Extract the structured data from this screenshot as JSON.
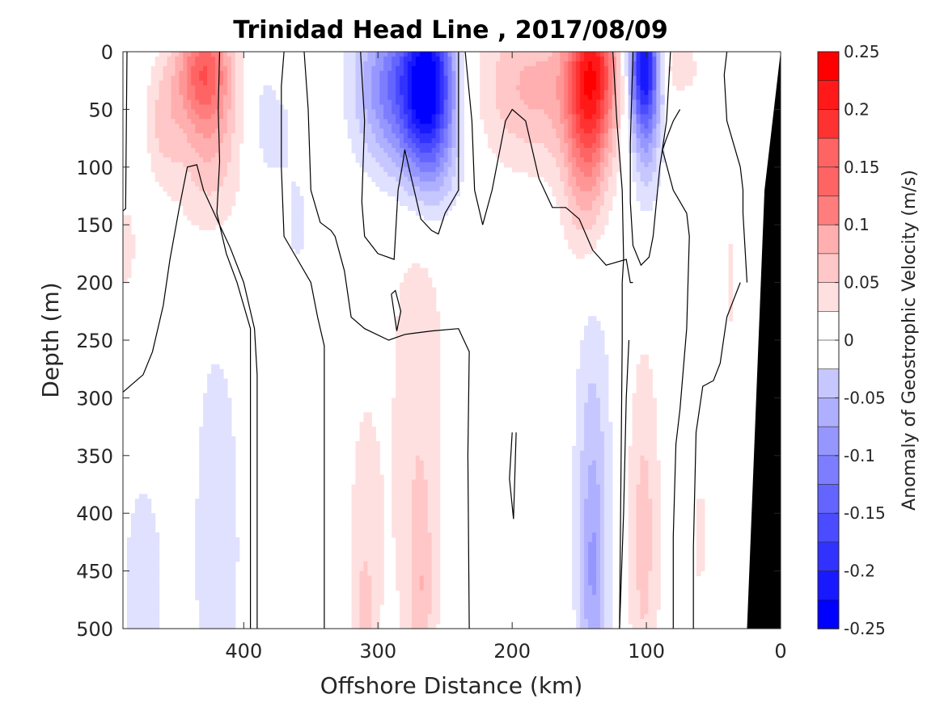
{
  "chart_data": {
    "type": "heatmap",
    "title": "Trinidad Head Line , 2017/08/09",
    "xlabel": "Offshore Distance (km)",
    "ylabel": "Depth (m)",
    "colorbar_label": "Anomaly of Geostrophic Velocity (m/s)",
    "xlim": [
      490,
      0
    ],
    "ylim": [
      0,
      500
    ],
    "x_reversed": true,
    "y_reversed": true,
    "x_ticks": [
      "400",
      "300",
      "200",
      "100",
      "0"
    ],
    "x_tick_values": [
      400,
      300,
      200,
      100,
      0
    ],
    "y_ticks": [
      "0",
      "50",
      "100",
      "150",
      "200",
      "250",
      "300",
      "350",
      "400",
      "450",
      "500"
    ],
    "y_tick_values": [
      0,
      50,
      100,
      150,
      200,
      250,
      300,
      350,
      400,
      450,
      500
    ],
    "colorbar": {
      "clim": [
        -0.25,
        0.25
      ],
      "step": 0.025,
      "tick_labels": [
        "0.25",
        "0.2",
        "0.15",
        "0.1",
        "0.05",
        "0",
        "-0.05",
        "-0.1",
        "-0.15",
        "-0.2",
        "-0.25"
      ],
      "tick_values": [
        0.25,
        0.2,
        0.15,
        0.1,
        0.05,
        0,
        -0.05,
        -0.1,
        -0.15,
        -0.2,
        -0.25
      ]
    },
    "positive_color": "#ff0000",
    "negative_color": "#0000ff",
    "zero_color": "#ffffff",
    "bathymetry_color": "#000000",
    "bathymetry": [
      [
        25,
        500
      ],
      [
        12,
        120
      ],
      [
        0,
        0
      ]
    ],
    "zero_contours": [
      [
        [
          490,
          138
        ],
        [
          488,
          136
        ],
        [
          487,
          0
        ]
      ],
      [
        [
          490,
          295
        ],
        [
          475,
          280
        ],
        [
          468,
          260
        ],
        [
          460,
          220
        ],
        [
          455,
          180
        ],
        [
          448,
          135
        ],
        [
          442,
          100
        ],
        [
          435,
          98
        ],
        [
          430,
          120
        ],
        [
          420,
          145
        ],
        [
          410,
          170
        ],
        [
          400,
          200
        ],
        [
          392,
          240
        ],
        [
          390,
          280
        ],
        [
          390,
          500
        ]
      ],
      [
        [
          395,
          500
        ],
        [
          395,
          300
        ],
        [
          395,
          240
        ],
        [
          405,
          200
        ],
        [
          413,
          175
        ],
        [
          420,
          140
        ],
        [
          418,
          95
        ],
        [
          419,
          50
        ],
        [
          418,
          0
        ]
      ],
      [
        [
          370,
          0
        ],
        [
          372,
          30
        ],
        [
          372,
          100
        ],
        [
          370,
          160
        ],
        [
          360,
          180
        ],
        [
          350,
          200
        ],
        [
          345,
          230
        ],
        [
          340,
          255
        ],
        [
          340,
          300
        ],
        [
          340,
          500
        ]
      ],
      [
        [
          355,
          0
        ],
        [
          352,
          50
        ],
        [
          350,
          120
        ],
        [
          343,
          148
        ],
        [
          335,
          155
        ],
        [
          332,
          160
        ],
        [
          325,
          190
        ],
        [
          320,
          230
        ],
        [
          310,
          240
        ],
        [
          292,
          250
        ],
        [
          280,
          245
        ],
        [
          260,
          242
        ],
        [
          240,
          240
        ],
        [
          232,
          260
        ],
        [
          233,
          350
        ],
        [
          232,
          500
        ]
      ],
      [
        [
          290,
          210
        ],
        [
          287,
          207
        ],
        [
          283,
          225
        ],
        [
          286,
          242
        ],
        [
          290,
          210
        ]
      ],
      [
        [
          313,
          0
        ],
        [
          310,
          60
        ],
        [
          312,
          130
        ],
        [
          310,
          160
        ],
        [
          300,
          175
        ],
        [
          288,
          180
        ],
        [
          285,
          120
        ],
        [
          282,
          100
        ],
        [
          280,
          85
        ],
        [
          272,
          125
        ],
        [
          268,
          145
        ],
        [
          260,
          155
        ],
        [
          255,
          158
        ],
        [
          250,
          140
        ],
        [
          240,
          120
        ],
        [
          240,
          60
        ],
        [
          240,
          0
        ]
      ],
      [
        [
          235,
          0
        ],
        [
          230,
          60
        ],
        [
          228,
          120
        ],
        [
          222,
          150
        ],
        [
          215,
          120
        ],
        [
          210,
          90
        ],
        [
          205,
          60
        ],
        [
          200,
          50
        ],
        [
          190,
          60
        ],
        [
          180,
          110
        ],
        [
          170,
          135
        ],
        [
          160,
          135
        ],
        [
          150,
          145
        ],
        [
          140,
          172
        ],
        [
          130,
          185
        ],
        [
          115,
          180
        ],
        [
          112,
          200
        ],
        [
          110,
          200
        ]
      ],
      [
        [
          125,
          0
        ],
        [
          122,
          60
        ],
        [
          118,
          120
        ],
        [
          117,
          180
        ],
        [
          118,
          200
        ]
      ],
      [
        [
          118,
          200
        ],
        [
          118,
          250
        ],
        [
          120,
          500
        ]
      ],
      [
        [
          200,
          330
        ],
        [
          202,
          370
        ],
        [
          199,
          405
        ],
        [
          197,
          330
        ]
      ],
      [
        [
          110,
          0
        ],
        [
          112,
          80
        ],
        [
          112,
          130
        ],
        [
          110,
          168
        ],
        [
          104,
          185
        ],
        [
          98,
          178
        ],
        [
          95,
          160
        ],
        [
          90,
          100
        ],
        [
          85,
          60
        ],
        [
          82,
          0
        ]
      ],
      [
        [
          40,
          0
        ],
        [
          42,
          20
        ],
        [
          40,
          60
        ],
        [
          35,
          80
        ],
        [
          30,
          100
        ],
        [
          28,
          120
        ],
        [
          28,
          140
        ],
        [
          25,
          200
        ]
      ],
      [
        [
          120,
          500
        ],
        [
          117,
          400
        ],
        [
          115,
          300
        ],
        [
          113,
          250
        ]
      ],
      [
        [
          65,
          500
        ],
        [
          65,
          430
        ],
        [
          63,
          330
        ],
        [
          58,
          290
        ],
        [
          50,
          285
        ],
        [
          45,
          270
        ],
        [
          40,
          230
        ],
        [
          30,
          200
        ]
      ],
      [
        [
          80,
          500
        ],
        [
          80,
          420
        ],
        [
          78,
          340
        ],
        [
          75,
          310
        ],
        [
          70,
          240
        ],
        [
          68,
          160
        ],
        [
          70,
          140
        ],
        [
          75,
          130
        ],
        [
          80,
          120
        ],
        [
          88,
          85
        ],
        [
          85,
          75
        ],
        [
          80,
          60
        ],
        [
          75,
          50
        ]
      ]
    ]
  }
}
